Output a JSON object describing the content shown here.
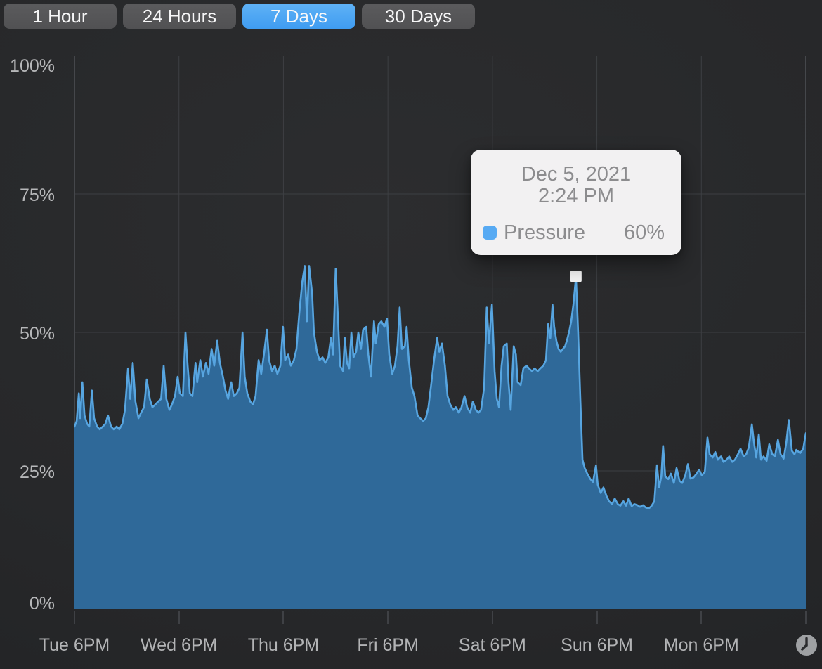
{
  "time_range_buttons": [
    {
      "label": "1 Hour",
      "selected": false
    },
    {
      "label": "24 Hours",
      "selected": false
    },
    {
      "label": "7 Days",
      "selected": true
    },
    {
      "label": "30 Days",
      "selected": false
    }
  ],
  "tooltip": {
    "date": "Dec 5, 2021",
    "time": "2:24 PM",
    "series_label": "Pressure",
    "value": "60%",
    "swatch_color": "#57aaf3",
    "background": "#f2f1f2"
  },
  "icons": {
    "bottom_right": "clock-icon"
  },
  "colors": {
    "accent_blue": "#3f9cf1",
    "area_fill": "#2f6999",
    "area_line": "#57a5e0",
    "grid_line": "#3d3f43",
    "plot_border": "#45474b",
    "axis_text": "#b4b5b7",
    "marker": "#f4f4f4",
    "clock_circle": "#9fa1a3",
    "clock_hands": "#2b2c2e"
  },
  "chart_data": {
    "type": "area",
    "title": "",
    "xlabel": "",
    "ylabel": "",
    "legend_position": "tooltip",
    "grid": true,
    "ylim": [
      0,
      100
    ],
    "y_tick_labels": [
      "100%",
      "75%",
      "50%",
      "25%",
      "0%"
    ],
    "y_tick_values": [
      100,
      75,
      50,
      25,
      0
    ],
    "x_range_hours": [
      0,
      168
    ],
    "x_tick_hours": [
      0,
      24,
      48,
      72,
      96,
      120,
      144,
      168
    ],
    "x_tick_labels": [
      "Tue 6PM",
      "Wed 6PM",
      "Thu 6PM",
      "Fri 6PM",
      "Sat 6PM",
      "Sun 6PM",
      "Mon 6PM"
    ],
    "series": [
      {
        "name": "Pressure",
        "unit": "%",
        "points": [
          [
            0,
            33
          ],
          [
            0.5,
            34
          ],
          [
            1,
            39
          ],
          [
            1.3,
            34.5
          ],
          [
            1.8,
            41
          ],
          [
            2.3,
            35
          ],
          [
            2.9,
            33.5
          ],
          [
            3.4,
            33
          ],
          [
            4,
            39.5
          ],
          [
            4.5,
            34.5
          ],
          [
            5.2,
            33
          ],
          [
            5.8,
            32.5
          ],
          [
            6.5,
            33
          ],
          [
            7.1,
            33.5
          ],
          [
            7.7,
            35
          ],
          [
            8.4,
            33
          ],
          [
            9,
            32.5
          ],
          [
            9.7,
            33
          ],
          [
            10.3,
            32.5
          ],
          [
            11,
            33.5
          ],
          [
            11.6,
            36
          ],
          [
            12.3,
            43.5
          ],
          [
            12.8,
            38
          ],
          [
            13.4,
            44.5
          ],
          [
            14,
            37.5
          ],
          [
            14.7,
            34.5
          ],
          [
            15.3,
            35.5
          ],
          [
            16,
            36.5
          ],
          [
            16.6,
            41.5
          ],
          [
            17.3,
            38
          ],
          [
            17.9,
            36.5
          ],
          [
            18.6,
            37
          ],
          [
            19.2,
            37.5
          ],
          [
            19.9,
            38
          ],
          [
            20.5,
            44
          ],
          [
            21.1,
            38
          ],
          [
            21.8,
            36
          ],
          [
            22.4,
            37
          ],
          [
            23.1,
            38.5
          ],
          [
            23.7,
            42
          ],
          [
            24.2,
            39
          ],
          [
            24.9,
            38.5
          ],
          [
            25.5,
            50
          ],
          [
            26,
            44
          ],
          [
            26.5,
            39
          ],
          [
            27.1,
            38.5
          ],
          [
            27.8,
            44.5
          ],
          [
            28.2,
            41
          ],
          [
            28.9,
            45
          ],
          [
            29.5,
            42
          ],
          [
            30.2,
            44.5
          ],
          [
            30.8,
            42.5
          ],
          [
            31.5,
            47
          ],
          [
            32.1,
            44
          ],
          [
            32.8,
            48.5
          ],
          [
            33.4,
            44.5
          ],
          [
            34.1,
            42
          ],
          [
            34.7,
            39.5
          ],
          [
            35.3,
            38
          ],
          [
            36,
            41
          ],
          [
            36.6,
            38.5
          ],
          [
            37.3,
            39
          ],
          [
            37.9,
            40
          ],
          [
            38.6,
            50
          ],
          [
            39.1,
            42
          ],
          [
            39.7,
            39
          ],
          [
            40.4,
            37.5
          ],
          [
            41,
            37
          ],
          [
            41.6,
            38.5
          ],
          [
            42.3,
            45
          ],
          [
            42.9,
            42.5
          ],
          [
            43.6,
            46.5
          ],
          [
            44.2,
            50.5
          ],
          [
            44.7,
            45
          ],
          [
            45.4,
            43
          ],
          [
            46,
            44
          ],
          [
            46.6,
            42.5
          ],
          [
            47.3,
            44
          ],
          [
            47.9,
            51
          ],
          [
            48.4,
            45
          ],
          [
            49.1,
            46
          ],
          [
            49.7,
            44
          ],
          [
            50.4,
            45
          ],
          [
            51,
            47
          ],
          [
            51.6,
            53
          ],
          [
            52.3,
            59
          ],
          [
            52.9,
            62
          ],
          [
            53.4,
            52
          ],
          [
            53.9,
            62
          ],
          [
            54.6,
            57
          ],
          [
            55,
            50
          ],
          [
            55.7,
            46.5
          ],
          [
            56.3,
            45
          ],
          [
            57,
            45.5
          ],
          [
            57.6,
            44.5
          ],
          [
            58.3,
            45.5
          ],
          [
            58.9,
            49
          ],
          [
            59.4,
            46
          ],
          [
            60,
            61.5
          ],
          [
            60.5,
            53
          ],
          [
            61,
            44
          ],
          [
            61.7,
            43
          ],
          [
            62.1,
            49
          ],
          [
            62.6,
            44.5
          ],
          [
            63.1,
            43.5
          ],
          [
            63.6,
            50
          ],
          [
            64.1,
            45.5
          ],
          [
            64.7,
            46.5
          ],
          [
            65.2,
            50
          ],
          [
            65.8,
            47
          ],
          [
            66.3,
            50.5
          ],
          [
            67,
            51
          ],
          [
            67.5,
            46
          ],
          [
            68.1,
            42
          ],
          [
            68.8,
            52
          ],
          [
            69.2,
            48
          ],
          [
            69.9,
            51.5
          ],
          [
            70.5,
            52
          ],
          [
            71.2,
            51
          ],
          [
            71.8,
            52.5
          ],
          [
            72.3,
            46
          ],
          [
            73,
            42.5
          ],
          [
            73.6,
            44
          ],
          [
            74.2,
            47.5
          ],
          [
            74.7,
            54.5
          ],
          [
            75.2,
            47
          ],
          [
            75.9,
            47.5
          ],
          [
            76.3,
            51
          ],
          [
            76.8,
            45
          ],
          [
            77.5,
            40
          ],
          [
            78.1,
            38.5
          ],
          [
            78.8,
            35
          ],
          [
            79.4,
            34.5
          ],
          [
            80.1,
            34
          ],
          [
            80.7,
            34.5
          ],
          [
            81.3,
            36.5
          ],
          [
            82,
            41
          ],
          [
            82.6,
            45
          ],
          [
            83.3,
            49
          ],
          [
            83.8,
            46.5
          ],
          [
            84.4,
            48
          ],
          [
            85.1,
            44
          ],
          [
            85.7,
            38.5
          ],
          [
            86.3,
            37
          ],
          [
            87,
            36
          ],
          [
            87.6,
            36.5
          ],
          [
            88.3,
            35.5
          ],
          [
            88.9,
            36.5
          ],
          [
            89.6,
            38.5
          ],
          [
            90.2,
            36.5
          ],
          [
            90.9,
            35.5
          ],
          [
            91.5,
            37.5
          ],
          [
            92.2,
            36
          ],
          [
            92.8,
            35.5
          ],
          [
            93.4,
            36
          ],
          [
            94.1,
            40
          ],
          [
            94.7,
            54.5
          ],
          [
            95.2,
            48
          ],
          [
            95.9,
            55
          ],
          [
            96.5,
            43
          ],
          [
            97,
            38
          ],
          [
            97.5,
            36.5
          ],
          [
            98.1,
            44
          ],
          [
            98.6,
            47.5
          ],
          [
            99.3,
            48
          ],
          [
            99.7,
            41
          ],
          [
            100.2,
            36
          ],
          [
            100.9,
            47.5
          ],
          [
            101.4,
            46
          ],
          [
            101.8,
            41
          ],
          [
            102.5,
            40.5
          ],
          [
            103.1,
            43.5
          ],
          [
            103.8,
            44
          ],
          [
            104.4,
            43.5
          ],
          [
            105.1,
            43
          ],
          [
            105.7,
            43.5
          ],
          [
            106.4,
            43
          ],
          [
            107,
            43.5
          ],
          [
            107.7,
            44
          ],
          [
            108.3,
            45
          ],
          [
            108.8,
            51.5
          ],
          [
            109.3,
            49
          ],
          [
            109.8,
            55
          ],
          [
            110.2,
            51
          ],
          [
            110.7,
            48.5
          ],
          [
            111.2,
            47
          ],
          [
            111.7,
            46.5
          ],
          [
            112.2,
            47
          ],
          [
            112.7,
            47.5
          ],
          [
            113.1,
            48.5
          ],
          [
            113.6,
            50
          ],
          [
            114.1,
            52
          ],
          [
            114.6,
            55
          ],
          [
            115.2,
            60
          ],
          [
            115.7,
            50
          ],
          [
            116.2,
            38
          ],
          [
            116.7,
            27
          ],
          [
            117.2,
            25.5
          ],
          [
            117.8,
            24.5
          ],
          [
            118.5,
            23.5
          ],
          [
            119.1,
            23
          ],
          [
            119.8,
            26
          ],
          [
            120.2,
            22.5
          ],
          [
            120.9,
            21
          ],
          [
            121.5,
            22
          ],
          [
            122.2,
            20.5
          ],
          [
            122.8,
            19.5
          ],
          [
            123.5,
            19
          ],
          [
            124.1,
            20
          ],
          [
            124.8,
            19
          ],
          [
            125.4,
            18.7
          ],
          [
            126.1,
            19.5
          ],
          [
            126.7,
            18.7
          ],
          [
            127.3,
            20
          ],
          [
            128,
            18.6
          ],
          [
            128.6,
            19
          ],
          [
            129.3,
            18.8
          ],
          [
            129.9,
            18.5
          ],
          [
            130.6,
            18.8
          ],
          [
            131.2,
            18.4
          ],
          [
            131.9,
            18.2
          ],
          [
            132.5,
            18.6
          ],
          [
            133.2,
            19.5
          ],
          [
            133.8,
            26
          ],
          [
            134.3,
            22
          ],
          [
            134.8,
            24
          ],
          [
            135.2,
            29.5
          ],
          [
            135.7,
            24
          ],
          [
            136.4,
            23.5
          ],
          [
            137,
            24.5
          ],
          [
            137.7,
            22.8
          ],
          [
            138.3,
            25.5
          ],
          [
            139,
            23.2
          ],
          [
            139.6,
            22.8
          ],
          [
            140.3,
            24.2
          ],
          [
            140.9,
            26.2
          ],
          [
            141.5,
            23.6
          ],
          [
            142.2,
            23.8
          ],
          [
            142.8,
            24.4
          ],
          [
            143.5,
            25.2
          ],
          [
            144.1,
            24.2
          ],
          [
            144.8,
            24.8
          ],
          [
            145.4,
            31
          ],
          [
            145.9,
            28
          ],
          [
            146.6,
            27.4
          ],
          [
            147.2,
            28.4
          ],
          [
            147.8,
            27
          ],
          [
            148.5,
            27.6
          ],
          [
            149.1,
            26.6
          ],
          [
            149.8,
            27
          ],
          [
            150.4,
            27.6
          ],
          [
            151.1,
            26.6
          ],
          [
            151.7,
            27
          ],
          [
            152.4,
            28
          ],
          [
            153,
            29
          ],
          [
            153.7,
            27.6
          ],
          [
            154.3,
            28
          ],
          [
            154.9,
            29.2
          ],
          [
            155.6,
            33.4
          ],
          [
            156.1,
            30
          ],
          [
            156.6,
            27.4
          ],
          [
            157.2,
            31.6
          ],
          [
            157.7,
            27
          ],
          [
            158.3,
            27.6
          ],
          [
            159,
            26.8
          ],
          [
            159.6,
            29.8
          ],
          [
            160.3,
            28
          ],
          [
            160.9,
            27.6
          ],
          [
            161.6,
            30.6
          ],
          [
            162.2,
            28
          ],
          [
            162.9,
            27.2
          ],
          [
            163.5,
            30
          ],
          [
            164.1,
            34.2
          ],
          [
            164.8,
            28.6
          ],
          [
            165.4,
            28
          ],
          [
            165.8,
            28.8
          ],
          [
            166.7,
            28.2
          ],
          [
            167.4,
            29
          ],
          [
            168,
            31.8
          ]
        ]
      }
    ],
    "highlighted_point": {
      "t_hours": 115.2,
      "value": 60,
      "label": "Dec 5, 2021 2:24 PM"
    }
  }
}
